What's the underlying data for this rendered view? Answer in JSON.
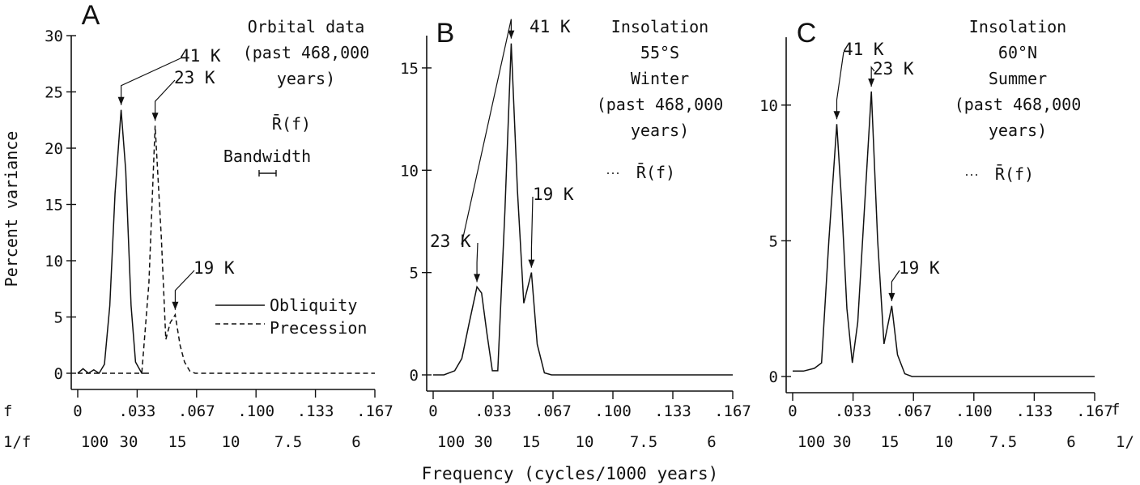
{
  "figure": {
    "xlabel": "Frequency (cycles/1000 years)",
    "ylabel": "Percent variance"
  },
  "chart_data": [
    {
      "type": "line",
      "panel": "A",
      "title": [
        "Orbital data",
        "(past 468,000",
        "years)"
      ],
      "ylim": [
        0,
        30
      ],
      "yticks": [
        0,
        5,
        10,
        15,
        20,
        25,
        30
      ],
      "xlim": [
        0,
        0.167
      ],
      "xtick_row_label": "f",
      "xtick_labels": [
        "0",
        ".033",
        ".067",
        ".100",
        ".133",
        ".167"
      ],
      "period_row_label": "1/f",
      "period_labels": [
        "100",
        "30",
        "15",
        "10",
        "7.5",
        "6"
      ],
      "resolution_label": "R̄(f)",
      "bandwidth_label": "Bandwidth",
      "series": [
        {
          "name": "Obliquity",
          "style": "solid",
          "x": [
            0,
            0.003,
            0.006,
            0.009,
            0.012,
            0.015,
            0.018,
            0.021,
            0.0244,
            0.027,
            0.03,
            0.0325,
            0.036,
            0.04
          ],
          "y": [
            0,
            0.4,
            0,
            0.3,
            0,
            0.8,
            6,
            16,
            23.4,
            18,
            6,
            1,
            0,
            0
          ]
        },
        {
          "name": "Precession",
          "style": "dashed",
          "x": [
            0,
            0.036,
            0.04,
            0.0435,
            0.047,
            0.0495,
            0.052,
            0.0548,
            0.0575,
            0.06,
            0.063,
            0.066,
            0.167
          ],
          "y": [
            0,
            0,
            8,
            22,
            12,
            3,
            4.5,
            5.2,
            2.5,
            1,
            0.2,
            0,
            0
          ]
        }
      ],
      "peaks": [
        {
          "label": "41 K",
          "x": 0.0244,
          "y": 23.4
        },
        {
          "label": "23 K",
          "x": 0.0435,
          "y": 22
        },
        {
          "label": "19 K",
          "x": 0.0548,
          "y": 5.2
        }
      ],
      "legend": [
        "Obliquity",
        "Precession"
      ]
    },
    {
      "type": "line",
      "panel": "B",
      "title": [
        "Insolation",
        "55°S",
        "Winter",
        "(past 468,000",
        "years)"
      ],
      "ylim": [
        0,
        16.5
      ],
      "yticks": [
        0,
        5,
        10,
        15
      ],
      "xlim": [
        0,
        0.167
      ],
      "xtick_labels": [
        "0",
        ".033",
        ".067",
        ".100",
        ".133",
        ".167"
      ],
      "period_labels": [
        "100",
        "30",
        "15",
        "10",
        "7.5",
        "6"
      ],
      "resolution_label": "R̄(f)",
      "series": [
        {
          "name": "",
          "style": "solid",
          "x": [
            0,
            0.006,
            0.012,
            0.016,
            0.02,
            0.0244,
            0.027,
            0.03,
            0.033,
            0.036,
            0.04,
            0.0435,
            0.047,
            0.0505,
            0.0548,
            0.058,
            0.062,
            0.066,
            0.167
          ],
          "y": [
            0,
            0,
            0.2,
            0.8,
            2.5,
            4.3,
            4,
            2,
            0.2,
            0.2,
            8,
            16.2,
            9,
            3.5,
            5,
            1.5,
            0.1,
            0,
            0
          ]
        }
      ],
      "peaks": [
        {
          "label": "41 K",
          "x": 0.0244,
          "y": 4.3
        },
        {
          "label": "23 K",
          "x": 0.0435,
          "y": 16.2
        },
        {
          "label": "19 K",
          "x": 0.0548,
          "y": 5
        }
      ]
    },
    {
      "type": "line",
      "panel": "C",
      "title": [
        "Insolation",
        "60°N",
        "Summer",
        "(past 468,000",
        "years)"
      ],
      "ylim": [
        0,
        12.5
      ],
      "yticks": [
        0,
        5,
        10
      ],
      "xlim": [
        0,
        0.167
      ],
      "xtick_row_label": "f",
      "xtick_labels": [
        "0",
        ".033",
        ".067",
        ".100",
        ".133",
        ".167"
      ],
      "period_row_label": "1/",
      "period_labels": [
        "100",
        "30",
        "15",
        "10",
        "7.5",
        "6"
      ],
      "resolution_label": "R̄(f)",
      "series": [
        {
          "name": "",
          "style": "solid",
          "x": [
            0,
            0.006,
            0.012,
            0.016,
            0.02,
            0.0244,
            0.027,
            0.03,
            0.033,
            0.036,
            0.04,
            0.0435,
            0.047,
            0.0505,
            0.0548,
            0.058,
            0.062,
            0.066,
            0.167
          ],
          "y": [
            0.2,
            0.2,
            0.3,
            0.5,
            5,
            9.3,
            6.5,
            2.5,
            0.5,
            2,
            6.5,
            10.5,
            5,
            1.2,
            2.6,
            0.8,
            0.1,
            0,
            0
          ]
        }
      ],
      "peaks": [
        {
          "label": "41 K",
          "x": 0.0244,
          "y": 9.3
        },
        {
          "label": "23 K",
          "x": 0.0435,
          "y": 10.5
        },
        {
          "label": "19 K",
          "x": 0.0548,
          "y": 2.6
        }
      ]
    }
  ]
}
